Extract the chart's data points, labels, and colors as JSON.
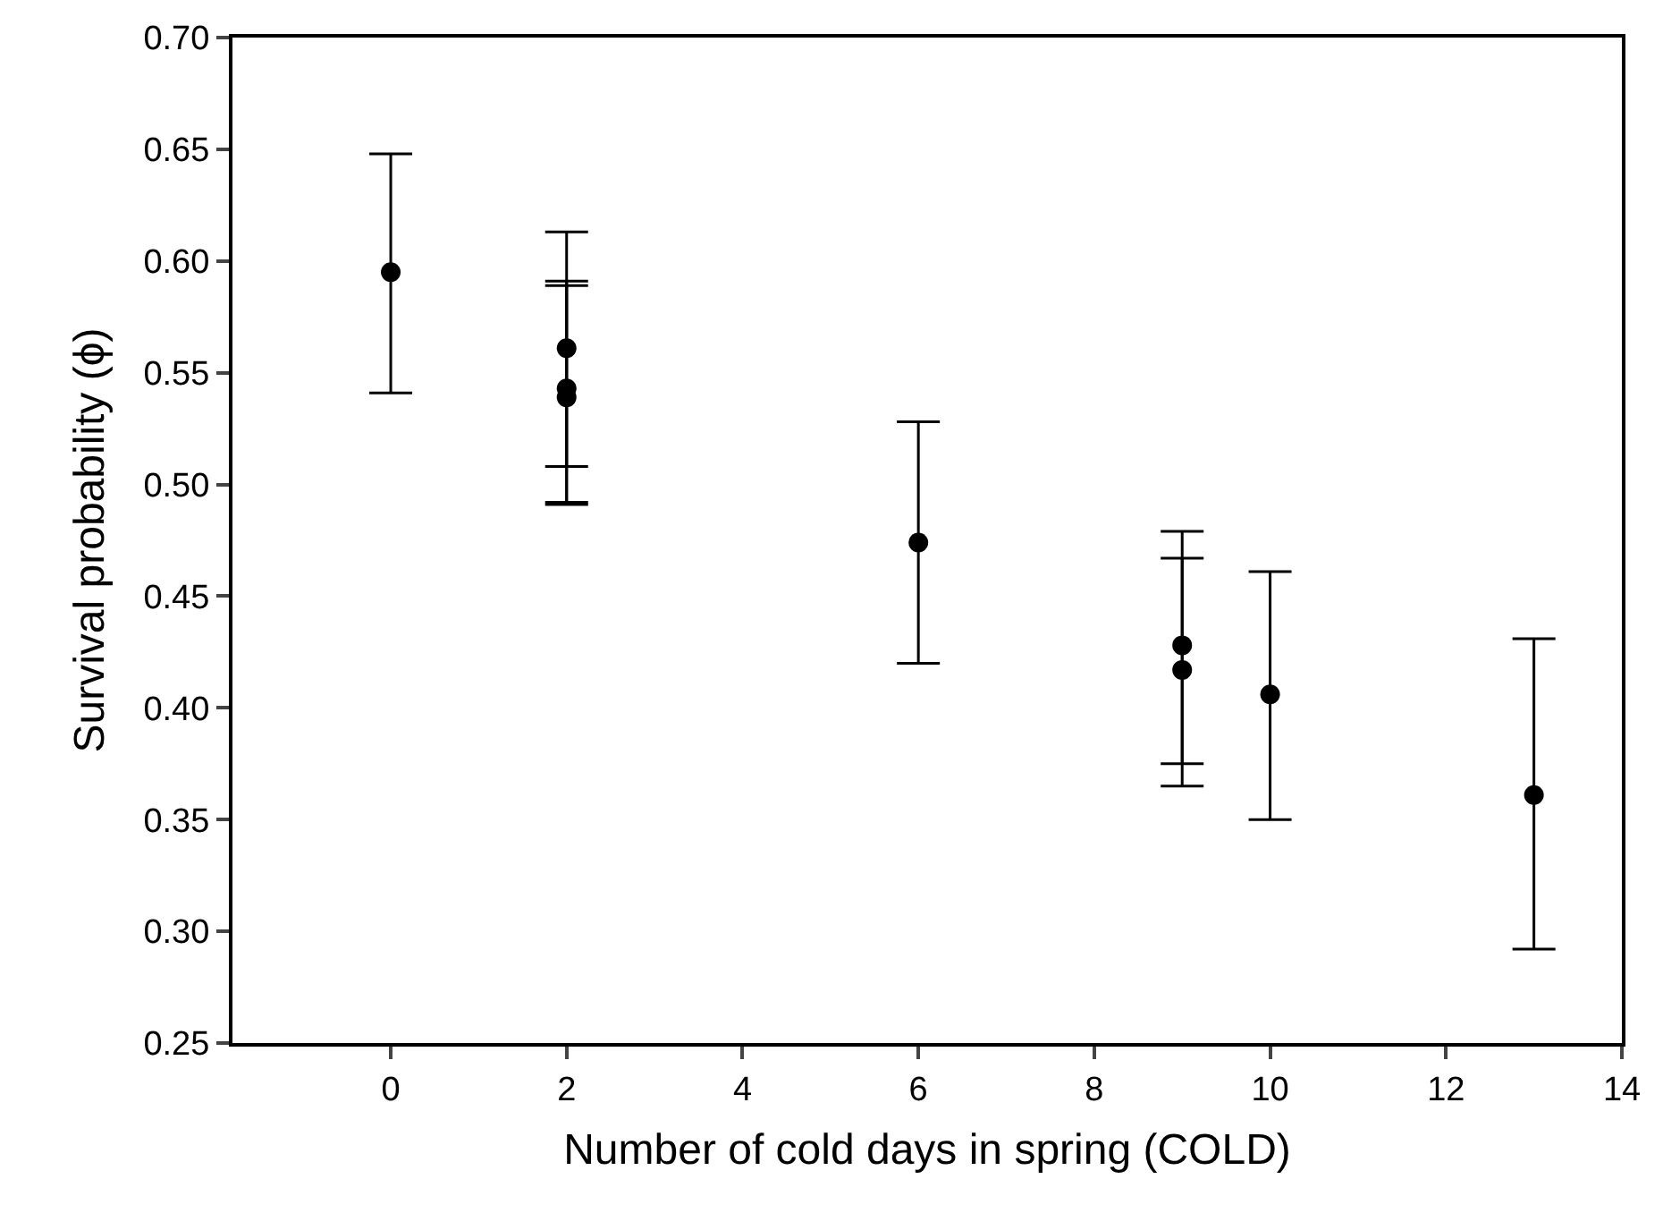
{
  "chart_data": {
    "type": "scatter",
    "xlabel": "Number of cold days in spring (COLD)",
    "ylabel": "Survival probability (ϕ)",
    "x": [
      0,
      2,
      2,
      2,
      6,
      9,
      9,
      10,
      13
    ],
    "values": [
      0.595,
      0.561,
      0.543,
      0.539,
      0.474,
      0.428,
      0.417,
      0.406,
      0.361
    ],
    "errors": [
      [
        0.541,
        0.648
      ],
      [
        0.508,
        0.613
      ],
      [
        0.492,
        0.591
      ],
      [
        0.491,
        0.589
      ],
      [
        0.42,
        0.528
      ],
      [
        0.375,
        0.479
      ],
      [
        0.365,
        0.467
      ],
      [
        0.35,
        0.461
      ],
      [
        0.292,
        0.431
      ]
    ],
    "color": "#000000",
    "marker": "circle",
    "xlim": [
      -1.8,
      14
    ],
    "xticks": [
      0,
      2,
      4,
      6,
      8,
      10,
      12,
      14
    ],
    "ylim": [
      0.25,
      0.7
    ],
    "yticks": [
      {
        "value": 0.25,
        "label": "0.25"
      },
      {
        "value": 0.3,
        "label": "0.30"
      },
      {
        "value": 0.35,
        "label": "0.35"
      },
      {
        "value": 0.4,
        "label": "0.40"
      },
      {
        "value": 0.45,
        "label": "0.45"
      },
      {
        "value": 0.5,
        "label": "0.50"
      },
      {
        "value": 0.55,
        "label": "0.55"
      },
      {
        "value": 0.6,
        "label": "0.60"
      },
      {
        "value": 0.65,
        "label": "0.65"
      },
      {
        "value": 0.7,
        "label": "0.70"
      }
    ]
  }
}
